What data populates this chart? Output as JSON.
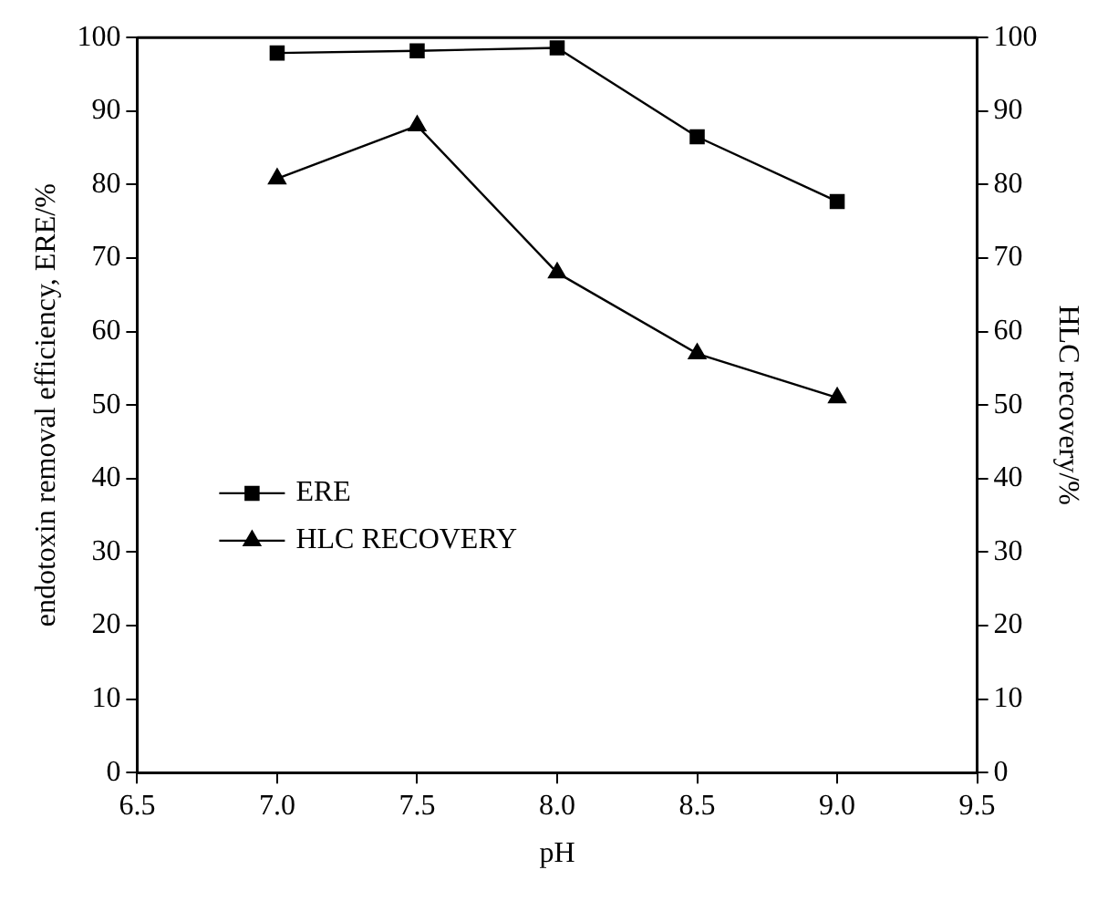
{
  "chart_data": {
    "type": "line",
    "xlabel": "pH",
    "ylabel": "endotoxin removal efficiency, ERE/%",
    "y2label": "HLC recovery/%",
    "x": [
      7.0,
      7.5,
      8.0,
      8.5,
      9.0
    ],
    "series": [
      {
        "name": "ERE",
        "color": "#000000",
        "marker": "square",
        "values": [
          97.9,
          98.2,
          98.6,
          86.5,
          77.7
        ]
      },
      {
        "name": "HLC RECOVERY",
        "color": "#000000",
        "marker": "triangle",
        "axis": "y2",
        "values": [
          80.8,
          88,
          68,
          57,
          51
        ]
      }
    ],
    "xlim": [
      6.5,
      9.5
    ],
    "xticks": [
      {
        "value": 6.5,
        "label": "6.5"
      },
      {
        "value": 7,
        "label": "7.0"
      },
      {
        "value": 7.5,
        "label": "7.5"
      },
      {
        "value": 8,
        "label": "8.0"
      },
      {
        "value": 8.5,
        "label": "8.5"
      },
      {
        "value": 9,
        "label": "9.0"
      },
      {
        "value": 9.5,
        "label": "9.5"
      }
    ],
    "ylim": [
      0,
      100
    ],
    "yticks": [
      0,
      10,
      20,
      30,
      40,
      50,
      60,
      70,
      80,
      90,
      100
    ],
    "y2lim": [
      0,
      100
    ],
    "y2ticks": [
      0,
      10,
      20,
      30,
      40,
      50,
      60,
      70,
      80,
      90,
      100
    ],
    "grid": false,
    "legend": "left",
    "line_style": "solid"
  }
}
